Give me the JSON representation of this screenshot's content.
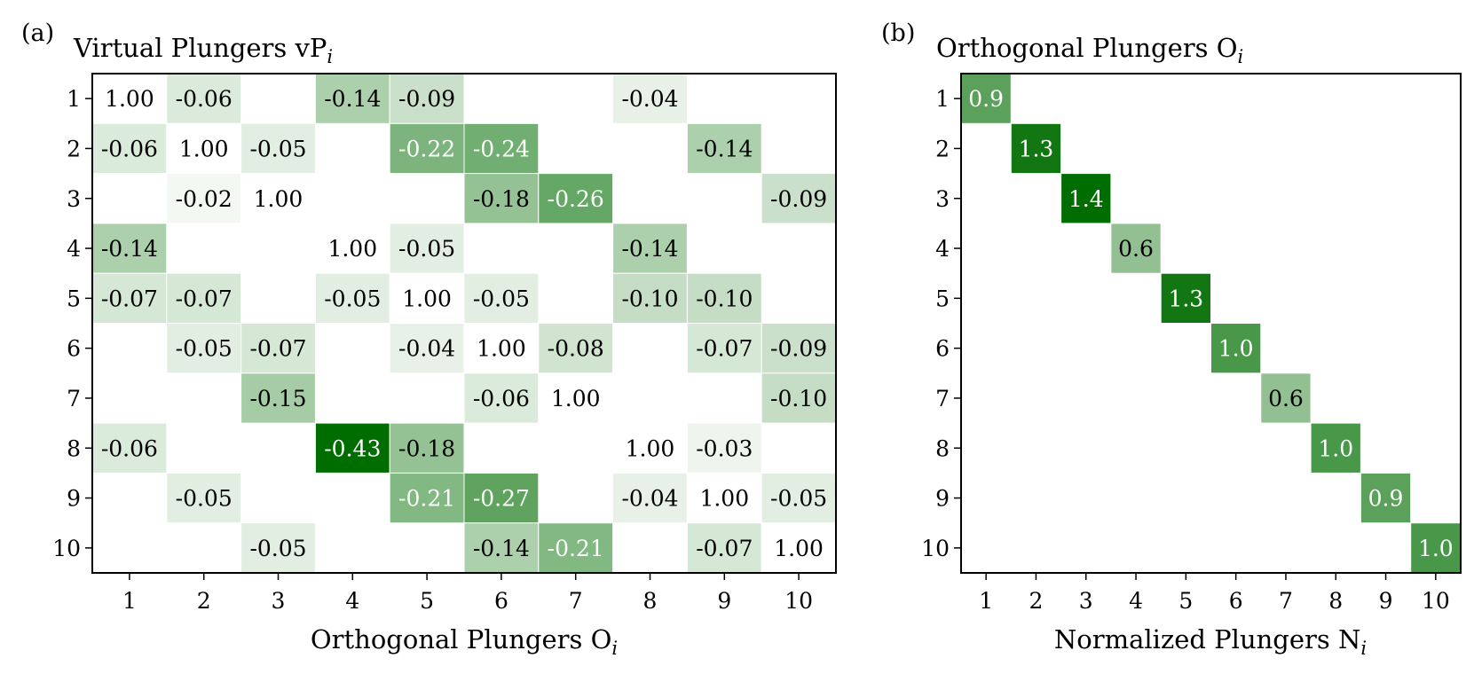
{
  "figure": {
    "panel_a_label": "(a)",
    "panel_b_label": "(b)"
  },
  "chart_data": [
    {
      "type": "heatmap",
      "title": "Virtual Plungers vP",
      "title_subscript": "i",
      "xlabel": "Orthogonal Plungers O",
      "xlabel_subscript": "i",
      "ylabel": "",
      "rows": [
        "1",
        "2",
        "3",
        "4",
        "5",
        "6",
        "7",
        "8",
        "9",
        "10"
      ],
      "columns": [
        "1",
        "2",
        "3",
        "4",
        "5",
        "6",
        "7",
        "8",
        "9",
        "10"
      ],
      "value_format": "2",
      "color_scale": {
        "colormap": "Greens",
        "low_color": "#ffffff",
        "high_color": "#006d00",
        "abs_max": 0.43
      },
      "values": [
        [
          1.0,
          -0.06,
          null,
          -0.14,
          -0.09,
          null,
          null,
          -0.04,
          null,
          null
        ],
        [
          -0.06,
          1.0,
          -0.05,
          null,
          -0.22,
          -0.24,
          null,
          null,
          -0.14,
          null
        ],
        [
          null,
          -0.02,
          1.0,
          null,
          null,
          -0.18,
          -0.26,
          null,
          null,
          -0.09
        ],
        [
          -0.14,
          null,
          null,
          1.0,
          -0.05,
          null,
          null,
          -0.14,
          null,
          null
        ],
        [
          -0.07,
          -0.07,
          null,
          -0.05,
          1.0,
          -0.05,
          null,
          -0.1,
          -0.1,
          null
        ],
        [
          null,
          -0.05,
          -0.07,
          null,
          -0.04,
          1.0,
          -0.08,
          null,
          -0.07,
          -0.09
        ],
        [
          null,
          null,
          -0.15,
          null,
          null,
          -0.06,
          1.0,
          null,
          null,
          -0.1
        ],
        [
          -0.06,
          null,
          null,
          -0.43,
          -0.18,
          null,
          null,
          1.0,
          -0.03,
          null
        ],
        [
          null,
          -0.05,
          null,
          null,
          -0.21,
          -0.27,
          null,
          -0.04,
          1.0,
          -0.05
        ],
        [
          null,
          null,
          -0.05,
          null,
          null,
          -0.14,
          -0.21,
          null,
          -0.07,
          1.0
        ]
      ]
    },
    {
      "type": "heatmap",
      "title": "Orthogonal Plungers O",
      "title_subscript": "i",
      "xlabel": "Normalized Plungers N",
      "xlabel_subscript": "i",
      "ylabel": "",
      "rows": [
        "1",
        "2",
        "3",
        "4",
        "5",
        "6",
        "7",
        "8",
        "9",
        "10"
      ],
      "columns": [
        "1",
        "2",
        "3",
        "4",
        "5",
        "6",
        "7",
        "8",
        "9",
        "10"
      ],
      "value_format": "1",
      "color_scale": {
        "colormap": "Greens",
        "low_color": "#ffffff",
        "high_color": "#006d00",
        "abs_max": 1.4
      },
      "values": [
        [
          0.9,
          null,
          null,
          null,
          null,
          null,
          null,
          null,
          null,
          null
        ],
        [
          null,
          1.3,
          null,
          null,
          null,
          null,
          null,
          null,
          null,
          null
        ],
        [
          null,
          null,
          1.4,
          null,
          null,
          null,
          null,
          null,
          null,
          null
        ],
        [
          null,
          null,
          null,
          0.6,
          null,
          null,
          null,
          null,
          null,
          null
        ],
        [
          null,
          null,
          null,
          null,
          1.3,
          null,
          null,
          null,
          null,
          null
        ],
        [
          null,
          null,
          null,
          null,
          null,
          1.0,
          null,
          null,
          null,
          null
        ],
        [
          null,
          null,
          null,
          null,
          null,
          null,
          0.6,
          null,
          null,
          null
        ],
        [
          null,
          null,
          null,
          null,
          null,
          null,
          null,
          1.0,
          null,
          null
        ],
        [
          null,
          null,
          null,
          null,
          null,
          null,
          null,
          null,
          0.9,
          null
        ],
        [
          null,
          null,
          null,
          null,
          null,
          null,
          null,
          null,
          null,
          1.0
        ]
      ]
    }
  ]
}
